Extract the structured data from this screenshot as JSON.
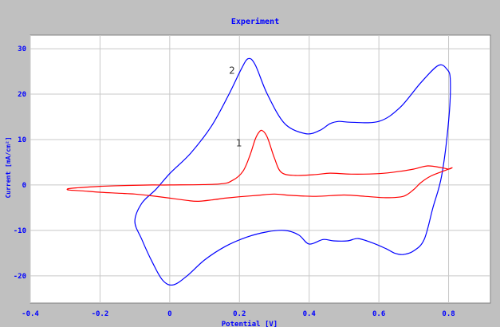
{
  "chart_data": {
    "type": "line",
    "title": "Experiment",
    "xlabel": "Potential [V]",
    "ylabel": "Current [mA/cm²]",
    "xlim": [
      -0.4,
      0.92
    ],
    "ylim": [
      -26,
      33
    ],
    "xticks": [
      -0.4,
      -0.2,
      0,
      0.2,
      0.4,
      0.6,
      0.8
    ],
    "xtick_labels": [
      "-0.4",
      "-0.2",
      "0",
      "0.2",
      "0.4",
      "0.6",
      "0.8"
    ],
    "yticks": [
      -20,
      -10,
      0,
      10,
      20,
      30
    ],
    "ytick_labels": [
      "-20",
      "-10",
      "0",
      "10",
      "20",
      "30"
    ],
    "grid": true,
    "background": "#c0c0c0",
    "plot_background": "#ffffff",
    "label_color": "#0000ff",
    "annotations": [
      {
        "text": "2",
        "x": 0.17,
        "y": 24.5
      },
      {
        "text": "1",
        "x": 0.19,
        "y": 8.5
      }
    ],
    "series": [
      {
        "color": "#0000ff",
        "closed": true,
        "x": [
          0.0,
          0.06,
          0.12,
          0.17,
          0.205,
          0.225,
          0.245,
          0.28,
          0.33,
          0.39,
          0.43,
          0.46,
          0.485,
          0.52,
          0.6,
          0.66,
          0.72,
          0.77,
          0.795,
          0.805,
          0.8,
          0.78,
          0.755,
          0.73,
          0.7,
          0.67,
          0.645,
          0.62,
          0.58,
          0.54,
          0.51,
          0.47,
          0.44,
          0.4,
          0.37,
          0.33,
          0.28,
          0.22,
          0.16,
          0.1,
          0.05,
          0.01,
          -0.02,
          -0.05,
          -0.08,
          -0.1,
          -0.08,
          -0.04
        ],
        "y": [
          2.5,
          7,
          13,
          20,
          25.5,
          27.8,
          26.5,
          20,
          13.5,
          11.3,
          12,
          13.5,
          14,
          13.8,
          14,
          17,
          22.5,
          26.3,
          25.5,
          23,
          14,
          2,
          -5,
          -12,
          -14.5,
          -15.3,
          -15,
          -14,
          -12.7,
          -11.8,
          -12.3,
          -12.3,
          -12,
          -13,
          -11,
          -10,
          -10.3,
          -11.5,
          -13.5,
          -16.5,
          -20,
          -22,
          -21,
          -17,
          -12,
          -8,
          -4,
          -1
        ]
      },
      {
        "color": "#ff0000",
        "closed": true,
        "x": [
          0.0,
          0.14,
          0.18,
          0.21,
          0.23,
          0.245,
          0.255,
          0.265,
          0.28,
          0.3,
          0.32,
          0.36,
          0.42,
          0.46,
          0.52,
          0.6,
          0.66,
          0.7,
          0.74,
          0.78,
          0.8,
          0.81,
          0.79,
          0.75,
          0.72,
          0.7,
          0.67,
          0.62,
          0.56,
          0.5,
          0.42,
          0.35,
          0.3,
          0.25,
          0.2,
          0.16,
          0.12,
          0.08,
          0.05,
          0.0,
          -0.05,
          -0.1,
          -0.15,
          -0.2,
          -0.25,
          -0.29,
          -0.29,
          -0.26,
          -0.2,
          -0.12,
          -0.05
        ],
        "y": [
          0,
          0.2,
          1.0,
          3.0,
          6.5,
          10.0,
          11.5,
          12.0,
          10.5,
          6.0,
          2.8,
          2.1,
          2.3,
          2.6,
          2.4,
          2.5,
          3.0,
          3.5,
          4.2,
          3.8,
          3.5,
          3.8,
          3.2,
          2.0,
          0.5,
          -1.0,
          -2.5,
          -2.8,
          -2.5,
          -2.2,
          -2.5,
          -2.3,
          -2.0,
          -2.3,
          -2.6,
          -2.9,
          -3.3,
          -3.6,
          -3.4,
          -2.9,
          -2.4,
          -2.0,
          -1.8,
          -1.6,
          -1.3,
          -1.1,
          -0.8,
          -0.6,
          -0.3,
          -0.1,
          0.0
        ]
      }
    ]
  }
}
